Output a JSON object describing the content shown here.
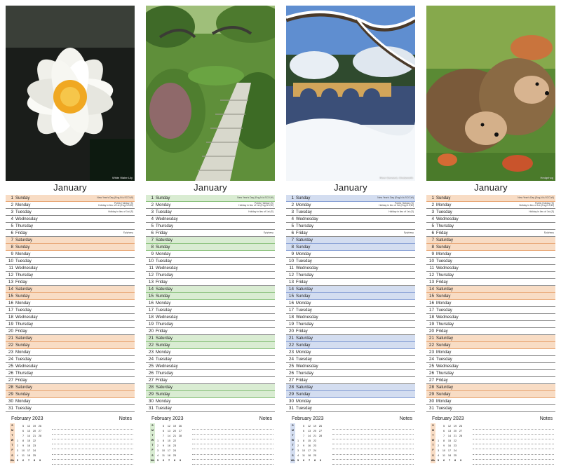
{
  "month": "January",
  "mini_title": "February 2023",
  "notes_label": "Notes",
  "weekday_letters": [
    "S",
    "M",
    "T",
    "W",
    "T",
    "F",
    "S"
  ],
  "february_grid": [
    [
      "",
      "5",
      "12",
      "19",
      "26"
    ],
    [
      "",
      "6",
      "13",
      "20",
      "27"
    ],
    [
      "",
      "7",
      "14",
      "21",
      "28"
    ],
    [
      "1",
      "8",
      "15",
      "22",
      ""
    ],
    [
      "2",
      "9",
      "16",
      "23",
      ""
    ],
    [
      "3",
      "10",
      "17",
      "24",
      ""
    ],
    [
      "4",
      "11",
      "18",
      "25",
      ""
    ]
  ],
  "week_numbers": [
    "5",
    "6",
    "7",
    "8",
    "9"
  ],
  "weeknum_label": "Wk",
  "days": [
    {
      "n": "1",
      "d": "Sunday"
    },
    {
      "n": "2",
      "d": "Monday"
    },
    {
      "n": "3",
      "d": "Tuesday"
    },
    {
      "n": "4",
      "d": "Wednesday"
    },
    {
      "n": "5",
      "d": "Thursday"
    },
    {
      "n": "6",
      "d": "Friday"
    },
    {
      "n": "7",
      "d": "Saturday"
    },
    {
      "n": "8",
      "d": "Sunday"
    },
    {
      "n": "9",
      "d": "Monday"
    },
    {
      "n": "10",
      "d": "Tuesday"
    },
    {
      "n": "11",
      "d": "Wednesday"
    },
    {
      "n": "12",
      "d": "Thursday"
    },
    {
      "n": "13",
      "d": "Friday"
    },
    {
      "n": "14",
      "d": "Saturday"
    },
    {
      "n": "15",
      "d": "Sunday"
    },
    {
      "n": "16",
      "d": "Monday"
    },
    {
      "n": "17",
      "d": "Tuesday"
    },
    {
      "n": "18",
      "d": "Wednesday"
    },
    {
      "n": "19",
      "d": "Thursday"
    },
    {
      "n": "20",
      "d": "Friday"
    },
    {
      "n": "21",
      "d": "Saturday"
    },
    {
      "n": "22",
      "d": "Sunday"
    },
    {
      "n": "23",
      "d": "Monday"
    },
    {
      "n": "24",
      "d": "Tuesday"
    },
    {
      "n": "25",
      "d": "Wednesday"
    },
    {
      "n": "26",
      "d": "Thursday"
    },
    {
      "n": "27",
      "d": "Friday"
    },
    {
      "n": "28",
      "d": "Saturday"
    },
    {
      "n": "29",
      "d": "Sunday"
    },
    {
      "n": "30",
      "d": "Monday"
    },
    {
      "n": "31",
      "d": "Tuesday"
    }
  ],
  "holidays": {
    "day1": "New Year's Day (Eng,N.Ir,SCO,W)",
    "day2a": "Public Holiday (S)",
    "day2b": "Holiday in lieu of 1st (Eng,N.Ir,W)",
    "day3": "Holiday in lieu of 1st (S)",
    "day6": "Epiphany"
  },
  "panels": [
    {
      "id": "lily",
      "caption": "White Water Lily",
      "weekend_color": "#f8dcc4",
      "accent": "#e9a978"
    },
    {
      "id": "garden",
      "caption": "",
      "weekend_color": "#d9ecd2",
      "accent": "#8cc27e"
    },
    {
      "id": "river",
      "caption": "River Derwent, Chatsworth",
      "weekend_color": "#d3ddf0",
      "accent": "#8aa2d6"
    },
    {
      "id": "hedgehog",
      "caption": "Hedgehog",
      "weekend_color": "#f8dcc4",
      "accent": "#e9a978"
    }
  ]
}
